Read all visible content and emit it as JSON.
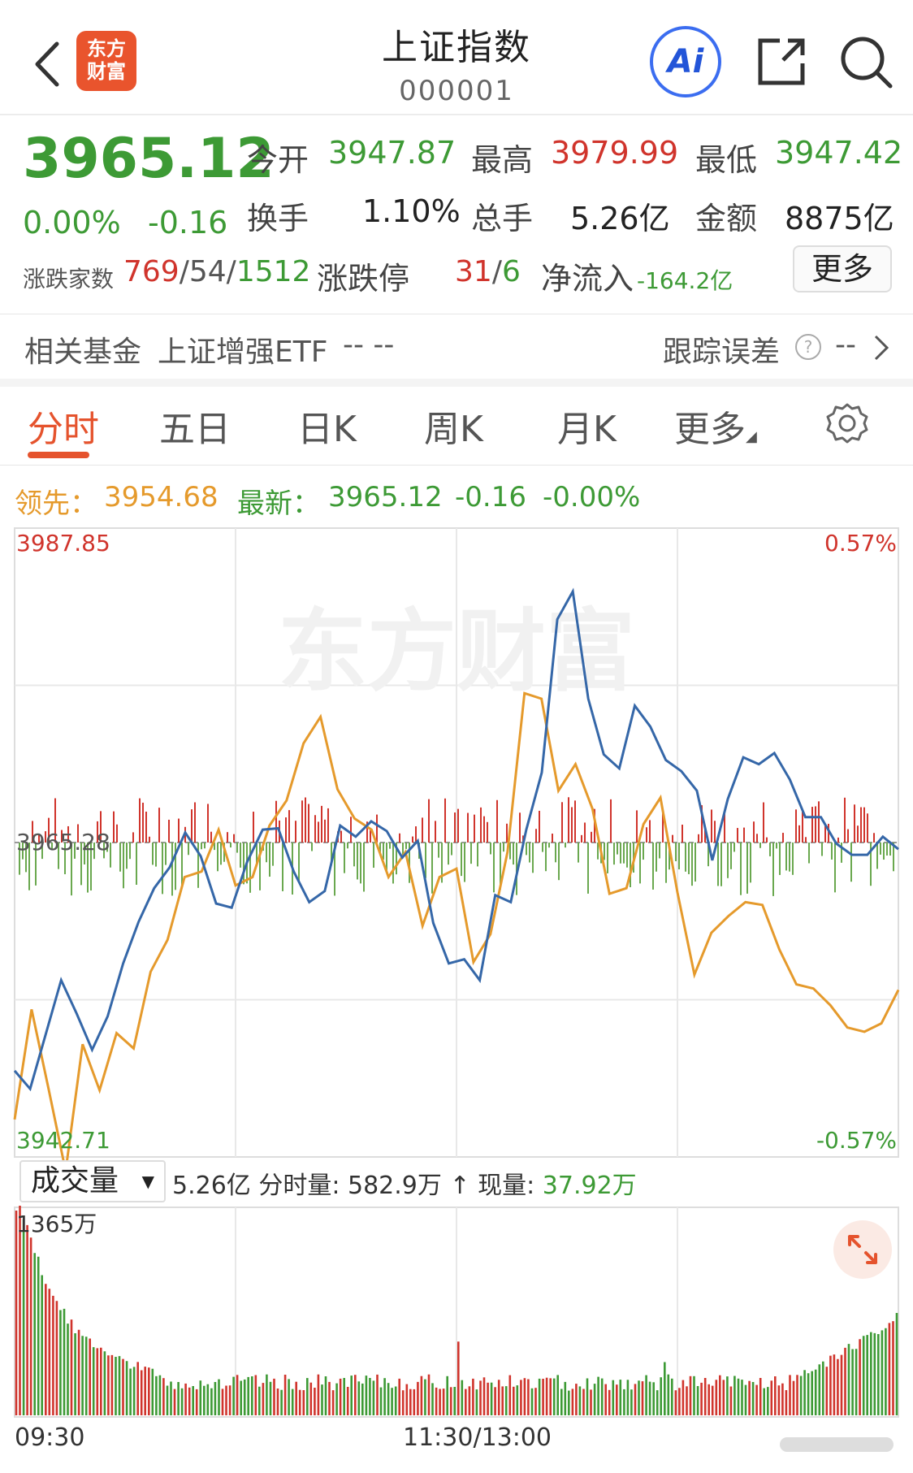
{
  "header": {
    "back_icon": "chevron-left-icon",
    "logo_line1": "东方",
    "logo_line2": "财富",
    "title": "上证指数",
    "code": "000001",
    "ai_label": "Ai",
    "share_icon": "share-icon",
    "search_icon": "search-icon"
  },
  "quote": {
    "price": "3965.12",
    "change_pct": "0.00%",
    "change": "-0.16",
    "open_label": "今开",
    "open": "3947.87",
    "high_label": "最高",
    "high": "3979.99",
    "low_label": "最低",
    "low": "3947.42",
    "turnover_label": "换手",
    "turnover": "1.10%",
    "volume_label": "总手",
    "volume": "5.26亿",
    "amount_label": "金额",
    "amount": "8875亿",
    "breadth_label": "涨跌家数",
    "breadth_up": "769",
    "sep1": "/",
    "breadth_flat": "54",
    "sep2": "/",
    "breadth_down": "1512",
    "limit_label": "涨跌停",
    "limit_up": "31",
    "sep3": "/",
    "limit_down": "6",
    "netflow_label": "净流入",
    "netflow": "-164.2亿",
    "more_button": "更多"
  },
  "fund": {
    "label": "相关基金",
    "name": "上证增强ETF",
    "values": "-- --",
    "tracking_label": "跟踪误差",
    "help_icon": "question-circle-icon",
    "tracking_value": "--"
  },
  "tabs": [
    "分时",
    "五日",
    "日K",
    "周K",
    "月K",
    "更多"
  ],
  "settings_icon": "gear-icon",
  "indicator": {
    "lead_label": "领先：",
    "lead_value": "3954.68",
    "latest_label": "最新：",
    "latest_value": "3965.12",
    "change": "-0.16",
    "change_pct": "-0.00%"
  },
  "chart_axis": {
    "top_price": "3987.85",
    "top_pct": "0.57%",
    "mid_price": "3965.28",
    "bottom_price": "3942.71",
    "bottom_pct": "-0.57%",
    "watermark": "东方财富"
  },
  "volume_bar": {
    "select": "成交量",
    "total": "5.26亿",
    "tick_label": "分时量:",
    "tick_value": "582.9万",
    "arrow": "↑",
    "now_label": "现量:",
    "now_value": "37.92万",
    "max_label": "1365万"
  },
  "time_axis": {
    "start": "09:30",
    "mid": "11:30/13:00"
  },
  "colors": {
    "up": "#d0342c",
    "down": "#3d9a35",
    "price_line": "#3567a8",
    "lead_line": "#e59a2c",
    "accent": "#e5532d"
  },
  "chart_data": {
    "type": "line",
    "ylim": [
      3942.71,
      3987.85
    ],
    "baseline": 3965.28,
    "series": [
      {
        "name": "最新",
        "values": [
          3948.9,
          3947.6,
          3951.5,
          3955.4,
          3953.0,
          3950.4,
          3952.8,
          3956.6,
          3959.6,
          3962.0,
          3963.5,
          3966.0,
          3964.3,
          3960.9,
          3960.6,
          3963.9,
          3966.2,
          3966.3,
          3963.2,
          3961.0,
          3961.8,
          3966.5,
          3965.7,
          3966.8,
          3966.1,
          3964.2,
          3965.4,
          3959.5,
          3956.6,
          3956.9,
          3955.4,
          3961.5,
          3961.0,
          3966.2,
          3970.3,
          3981.3,
          3983.3,
          3975.6,
          3971.6,
          3970.6,
          3975.1,
          3973.6,
          3971.2,
          3970.4,
          3969.0,
          3964.0,
          3968.4,
          3971.4,
          3970.9,
          3971.7,
          3969.8,
          3967.1,
          3967.1,
          3965.2,
          3964.4,
          3964.4,
          3965.7,
          3964.8
        ]
      },
      {
        "name": "领先",
        "values": [
          3945.4,
          3953.3,
          3947.6,
          3941.7,
          3950.8,
          3947.5,
          3951.6,
          3950.5,
          3956.0,
          3958.3,
          3962.8,
          3963.2,
          3966.2,
          3962.2,
          3962.8,
          3966.5,
          3968.3,
          3972.4,
          3974.3,
          3969.1,
          3967.0,
          3966.2,
          3962.8,
          3964.6,
          3959.3,
          3962.8,
          3963.4,
          3956.7,
          3958.7,
          3964.6,
          3976.0,
          3975.6,
          3969.0,
          3970.9,
          3967.7,
          3961.6,
          3962.0,
          3966.6,
          3968.5,
          3961.7,
          3955.8,
          3958.8,
          3960.0,
          3961.0,
          3960.8,
          3957.6,
          3955.1,
          3954.8,
          3953.6,
          3952.0,
          3951.7,
          3952.3,
          3954.7
        ]
      }
    ],
    "volume_max": "1365万"
  }
}
